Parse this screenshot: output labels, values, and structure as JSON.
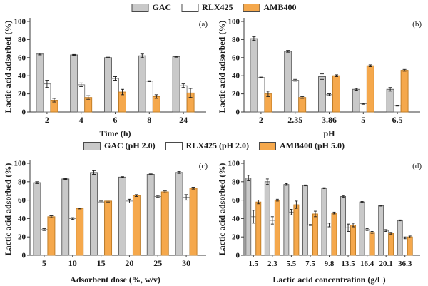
{
  "figure": {
    "legend_top": {
      "items": [
        {
          "label": "GAC",
          "color_key": "gac"
        },
        {
          "label": "RLX425",
          "color_key": "rlx425"
        },
        {
          "label": "AMB400",
          "color_key": "amb400"
        }
      ]
    },
    "legend_middle": {
      "items": [
        {
          "label": "GAC (pH 2.0)",
          "color_key": "gac"
        },
        {
          "label": "RLX425 (pH 2.0)",
          "color_key": "rlx425"
        },
        {
          "label": "AMB400 (pH 5.0)",
          "color_key": "amb400"
        }
      ]
    }
  },
  "colors": {
    "gac": "#c9c9c9",
    "gac_border": "#5a5a5a",
    "rlx425": "#ffffff",
    "rlx425_border": "#787878",
    "amb400": "#f5a84c",
    "amb400_border": "#bf7a22",
    "error_bar": "#1a1a1a",
    "axis": "#3a3a3a"
  },
  "chart_data": [
    {
      "type": "bar",
      "panel_label": "(a)",
      "xlabel": "Time (h)",
      "ylabel": "Lactic acid adsorbed (%)",
      "ylim": [
        0,
        100
      ],
      "yticks": [
        0,
        20,
        40,
        60,
        80,
        100
      ],
      "grid": false,
      "categories": [
        "2",
        "4",
        "6",
        "8",
        "24"
      ],
      "series": [
        {
          "name": "GAC",
          "color_key": "gac",
          "values": [
            64,
            63,
            60,
            62,
            61
          ],
          "errors": [
            1,
            0.5,
            0.5,
            2,
            0.5
          ]
        },
        {
          "name": "RLX425",
          "color_key": "rlx425",
          "values": [
            31,
            30,
            37,
            34,
            29
          ],
          "errors": [
            4,
            2,
            2,
            0.5,
            2
          ]
        },
        {
          "name": "AMB400",
          "color_key": "amb400",
          "values": [
            13,
            16,
            22,
            17,
            21
          ],
          "errors": [
            2,
            2,
            3,
            2,
            5
          ]
        }
      ]
    },
    {
      "type": "bar",
      "panel_label": "(b)",
      "xlabel": "pH",
      "ylabel": "Lactic acid adsorbed (%)",
      "ylim": [
        0,
        100
      ],
      "yticks": [
        0,
        20,
        40,
        60,
        80,
        100
      ],
      "grid": false,
      "categories": [
        "2",
        "2.35",
        "3.86",
        "5",
        "6.5"
      ],
      "series": [
        {
          "name": "GAC",
          "color_key": "gac",
          "values": [
            81,
            67,
            39,
            25,
            25
          ],
          "errors": [
            2,
            1,
            3,
            1,
            2
          ]
        },
        {
          "name": "RLX425",
          "color_key": "rlx425",
          "values": [
            38,
            35,
            19,
            9,
            7
          ],
          "errors": [
            0.5,
            1,
            1,
            0.5,
            0.5
          ]
        },
        {
          "name": "AMB400",
          "color_key": "amb400",
          "values": [
            20,
            16,
            40,
            51,
            46
          ],
          "errors": [
            3,
            1,
            1,
            1,
            1
          ]
        }
      ]
    },
    {
      "type": "bar",
      "panel_label": "(c)",
      "xlabel": "Adsorbent dose (%, w/v)",
      "ylabel": "Lactic acid adsorbed (%)",
      "ylim": [
        0,
        100
      ],
      "yticks": [
        0,
        20,
        40,
        60,
        80,
        100
      ],
      "grid": false,
      "categories": [
        "5",
        "10",
        "15",
        "20",
        "25",
        "30"
      ],
      "series": [
        {
          "name": "GAC",
          "color_key": "gac",
          "values": [
            79,
            83,
            90,
            85,
            88,
            90
          ],
          "errors": [
            1,
            0.5,
            2,
            0.5,
            0.5,
            1
          ]
        },
        {
          "name": "RLX425",
          "color_key": "rlx425",
          "values": [
            28,
            40,
            58,
            59,
            64,
            63
          ],
          "errors": [
            1,
            1,
            1,
            2,
            1,
            3
          ]
        },
        {
          "name": "AMB400",
          "color_key": "amb400",
          "values": [
            42,
            51,
            59,
            65,
            69,
            73
          ],
          "errors": [
            1,
            0.5,
            1,
            1,
            1,
            1
          ]
        }
      ]
    },
    {
      "type": "bar",
      "panel_label": "(d)",
      "xlabel": "Lactic acid concentration (g/L)",
      "ylabel": "Lactic acid adsorbed (%)",
      "ylim": [
        0,
        100
      ],
      "yticks": [
        0,
        20,
        40,
        60,
        80,
        100
      ],
      "grid": false,
      "categories": [
        "1.5",
        "2.3",
        "5.5",
        "7.5",
        "9.8",
        "13.5",
        "16.4",
        "20.1",
        "36.3"
      ],
      "series": [
        {
          "name": "GAC",
          "color_key": "gac",
          "values": [
            84,
            80,
            77,
            76,
            73,
            64,
            58,
            54,
            38
          ],
          "errors": [
            3,
            3,
            1,
            0.5,
            0.5,
            1,
            0.5,
            0.5,
            0.5
          ]
        },
        {
          "name": "RLX425",
          "color_key": "rlx425",
          "values": [
            42,
            38,
            47,
            33,
            33,
            30,
            28,
            27,
            19
          ],
          "errors": [
            7,
            4,
            3,
            0.5,
            2,
            4,
            1,
            1,
            1
          ]
        },
        {
          "name": "AMB400",
          "color_key": "amb400",
          "values": [
            58,
            60,
            55,
            45,
            46,
            33,
            25,
            24,
            20
          ],
          "errors": [
            2,
            1,
            4,
            3,
            1,
            2,
            1,
            1,
            1
          ]
        }
      ]
    }
  ]
}
